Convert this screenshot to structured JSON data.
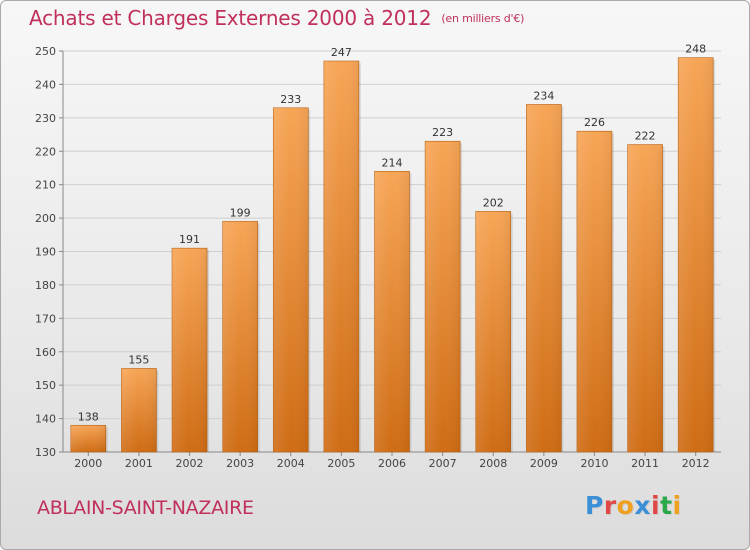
{
  "header": {
    "title": "Achats et Charges Externes 2000 à 2012",
    "unit": "(en milliers d'€)"
  },
  "footer": {
    "commune": "ABLAIN-SAINT-NAZAIRE",
    "logo_text": "Proxiti",
    "logo_colors": [
      "#3b8fd6",
      "#e04848",
      "#f0a020",
      "#3b8fd6",
      "#e04848",
      "#2aa84a",
      "#f0a020"
    ]
  },
  "colors": {
    "bar_light": "#f7a556",
    "bar_dark": "#cf6c14",
    "grid": "#cfcfcf",
    "text_accent": "#c0305a"
  },
  "chart_data": {
    "type": "bar",
    "categories": [
      "2000",
      "2001",
      "2002",
      "2003",
      "2004",
      "2005",
      "2006",
      "2007",
      "2008",
      "2009",
      "2010",
      "2011",
      "2012"
    ],
    "values": [
      138,
      155,
      191,
      199,
      233,
      247,
      214,
      223,
      202,
      234,
      226,
      222,
      248
    ],
    "ylim": [
      130,
      250
    ],
    "yticks": [
      130,
      140,
      150,
      160,
      170,
      180,
      190,
      200,
      210,
      220,
      230,
      240,
      250
    ],
    "grid": true,
    "legend": "none"
  }
}
